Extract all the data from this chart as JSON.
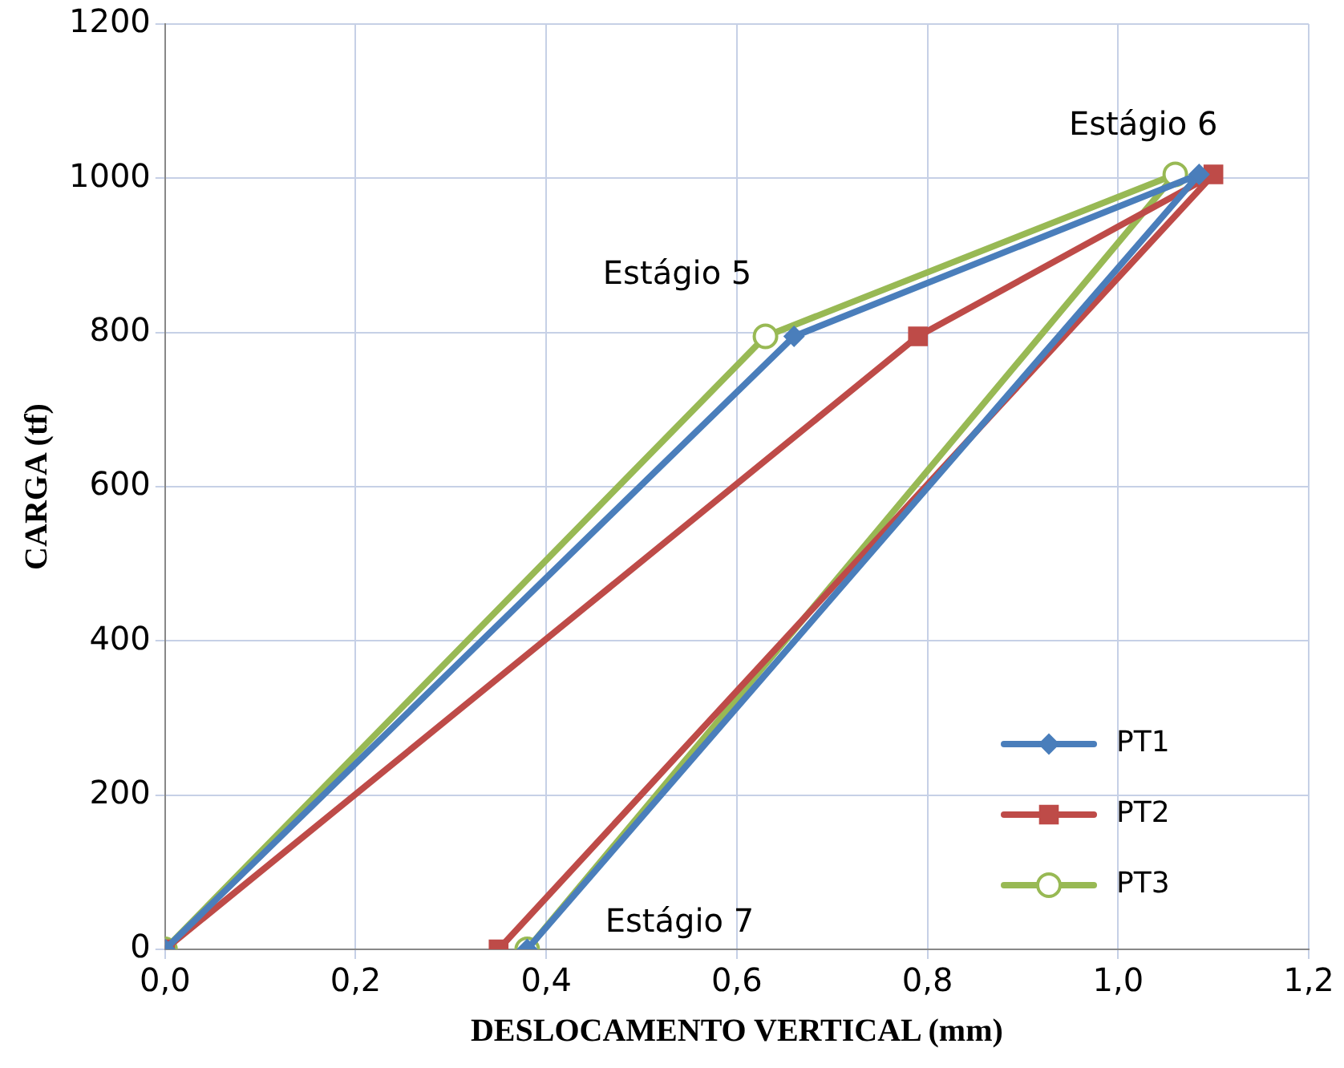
{
  "chart_data": {
    "type": "line",
    "xlabel": "DESLOCAMENTO VERTICAL (mm)",
    "ylabel": "CARGA (tf)",
    "xlim": [
      0,
      1.2
    ],
    "xticks": [
      {
        "value": 0,
        "label": "0,0"
      },
      {
        "value": 0.2,
        "label": "0,2"
      },
      {
        "value": 0.4,
        "label": "0,4"
      },
      {
        "value": 0.6,
        "label": "0,6"
      },
      {
        "value": 0.8,
        "label": "0,8"
      },
      {
        "value": 1,
        "label": "1,0"
      },
      {
        "value": 1.2,
        "label": "1,2"
      }
    ],
    "ylim": [
      0,
      1200
    ],
    "yticks": [
      0,
      200,
      400,
      600,
      800,
      1000,
      1200
    ],
    "grid": true,
    "legend": "bottom right",
    "series": [
      {
        "name": "PT1",
        "color": "#4a7ebb",
        "marker": "diamond",
        "x": [
          0,
          0.66,
          1.085,
          0.38
        ],
        "values": [
          0,
          795,
          1005,
          0
        ]
      },
      {
        "name": "PT2",
        "color": "#be4b48",
        "marker": "square",
        "x": [
          0,
          0.79,
          1.1,
          0.35
        ],
        "values": [
          0,
          795,
          1005,
          0
        ]
      },
      {
        "name": "PT3",
        "color": "#98b954",
        "marker": "circle",
        "x": [
          0,
          0.63,
          1.06,
          0.38
        ],
        "values": [
          0,
          795,
          1005,
          0
        ]
      }
    ],
    "annotations": [
      {
        "text": "Estágio 5",
        "x": 0.63,
        "y": 795
      },
      {
        "text": "Estágio 6",
        "x": 1.06,
        "y": 1005
      },
      {
        "text": "Estágio 7",
        "x": 0.38,
        "y": 0
      }
    ]
  }
}
